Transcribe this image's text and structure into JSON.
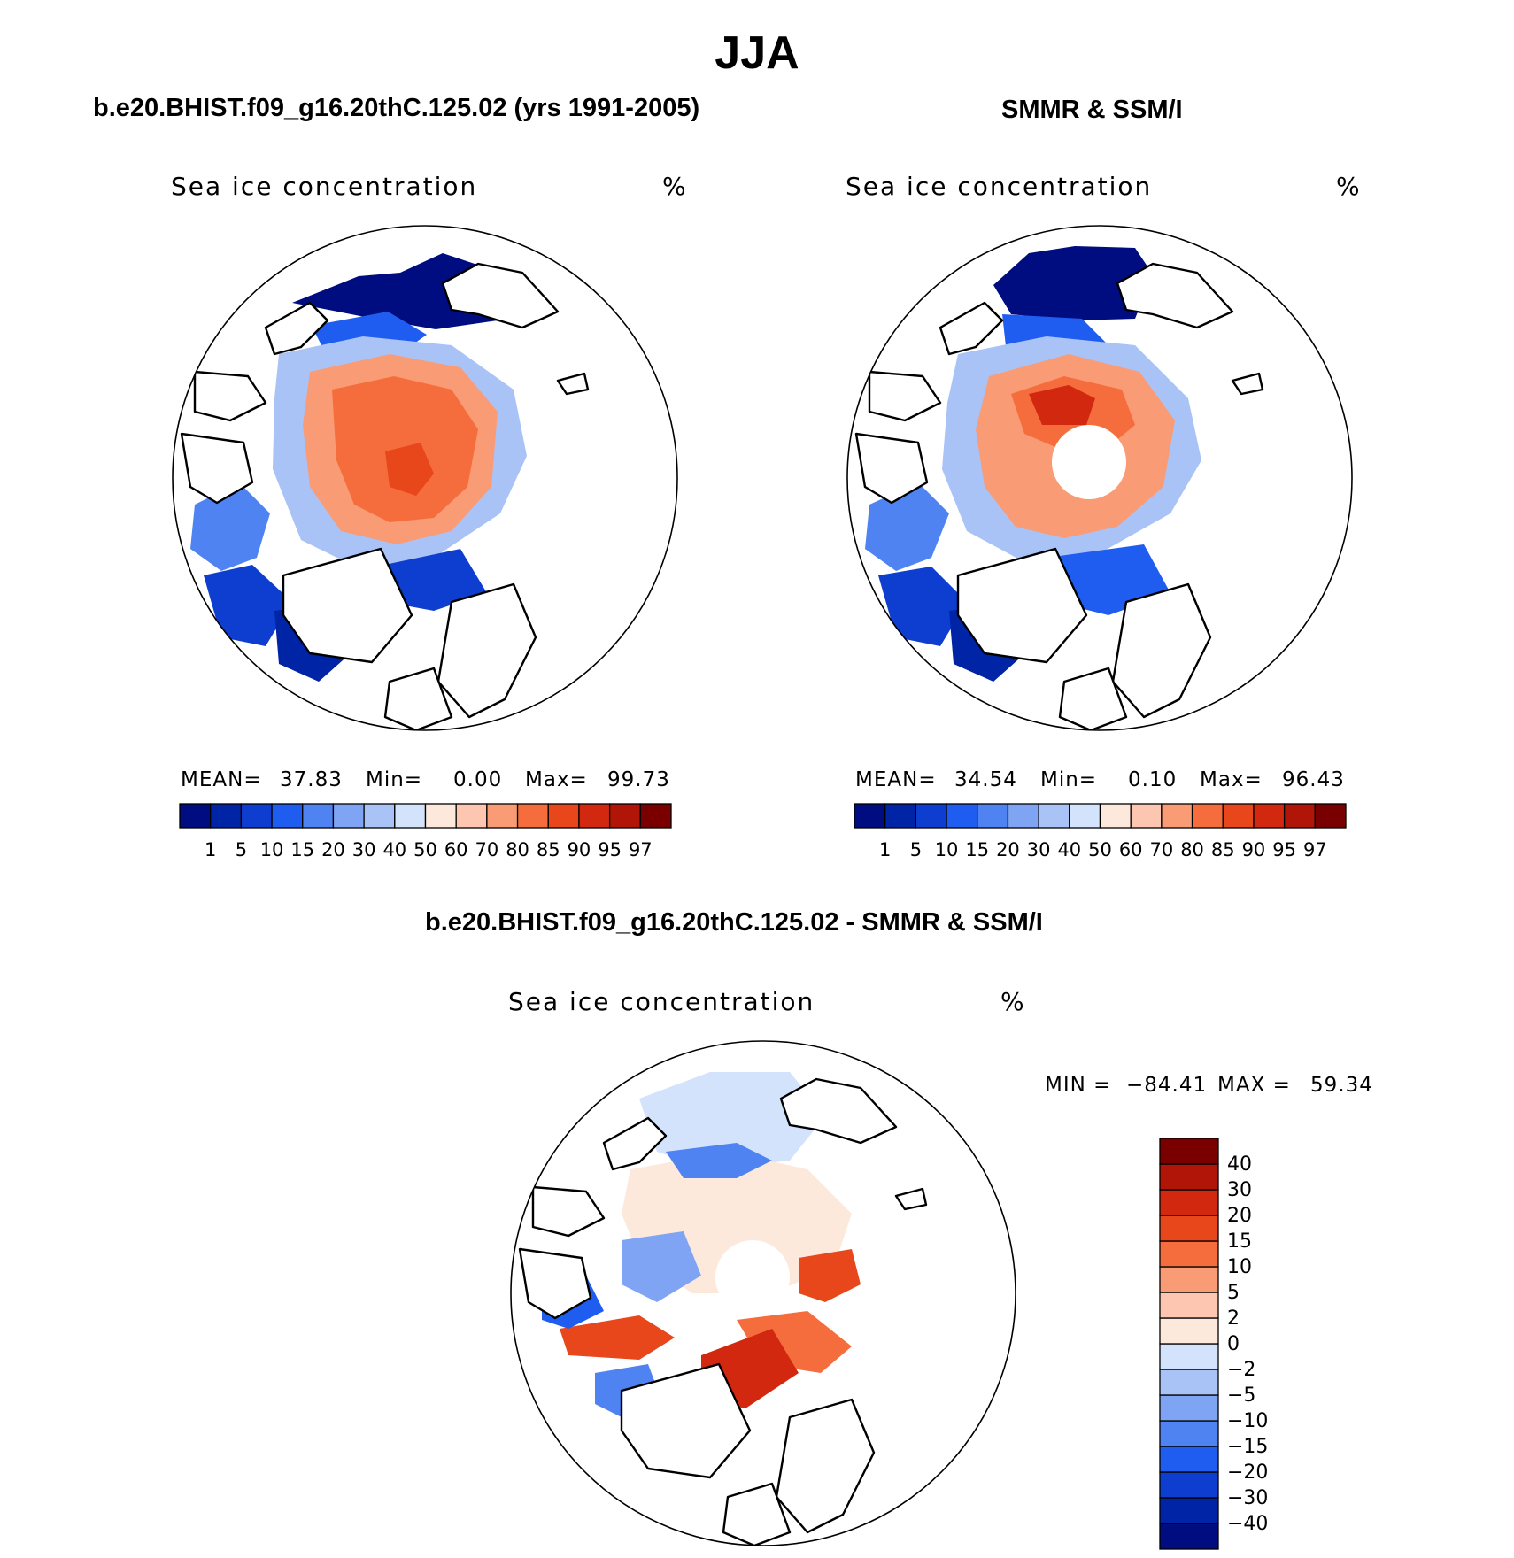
{
  "title": "JJA",
  "panels": [
    {
      "id": "model",
      "heading": "b.e20.BHIST.f09_g16.20thC.125.02 (yrs 1991-2005)",
      "variable": "Sea ice concentration",
      "units": "%",
      "stats": {
        "mean_label": "MEAN=",
        "mean": "37.83",
        "min_label": "Min=",
        "min": "0.00",
        "max_label": "Max=",
        "max": "99.73"
      }
    },
    {
      "id": "obs",
      "heading": "SMMR & SSM/I",
      "variable": "Sea ice concentration",
      "units": "%",
      "stats": {
        "mean_label": "MEAN=",
        "mean": "34.54",
        "min_label": "Min=",
        "min": "0.10",
        "max_label": "Max=",
        "max": "96.43"
      }
    },
    {
      "id": "diff",
      "heading": "b.e20.BHIST.f09_g16.20thC.125.02 - SMMR & SSM/I",
      "variable": "Sea ice concentration",
      "units": "%",
      "stats": {
        "min_label": "MIN =",
        "min": "−84.41",
        "max_label": "MAX =",
        "max": "59.34"
      }
    }
  ],
  "chart_data": [
    {
      "type": "heatmap",
      "title": "b.e20.BHIST.f09_g16.20thC.125.02 (yrs 1991-2005)",
      "projection": "north polar stereographic",
      "variable": "Sea ice concentration (%)",
      "levels": [
        1,
        5,
        10,
        15,
        20,
        30,
        40,
        50,
        60,
        70,
        80,
        85,
        90,
        95,
        97
      ],
      "level_labels": [
        "1",
        "5",
        "10",
        "15",
        "20",
        "30",
        "40",
        "50",
        "60",
        "70",
        "80",
        "85",
        "90",
        "95",
        "97"
      ],
      "colors": [
        "#000d80",
        "#0024a6",
        "#0d3ecf",
        "#1f5df0",
        "#4f83f2",
        "#7fa4f4",
        "#a9c3f7",
        "#d3e3fb",
        "#fde9dc",
        "#fcc6b0",
        "#f99c75",
        "#f56d3d",
        "#e8461b",
        "#d2280f",
        "#b01507",
        "#7a0000"
      ],
      "mean": 37.83,
      "min": 0.0,
      "max": 99.73
    },
    {
      "type": "heatmap",
      "title": "SMMR & SSM/I",
      "projection": "north polar stereographic",
      "variable": "Sea ice concentration (%)",
      "levels": [
        1,
        5,
        10,
        15,
        20,
        30,
        40,
        50,
        60,
        70,
        80,
        85,
        90,
        95,
        97
      ],
      "level_labels": [
        "1",
        "5",
        "10",
        "15",
        "20",
        "30",
        "40",
        "50",
        "60",
        "70",
        "80",
        "85",
        "90",
        "95",
        "97"
      ],
      "colors": [
        "#000d80",
        "#0024a6",
        "#0d3ecf",
        "#1f5df0",
        "#4f83f2",
        "#7fa4f4",
        "#a9c3f7",
        "#d3e3fb",
        "#fde9dc",
        "#fcc6b0",
        "#f99c75",
        "#f56d3d",
        "#e8461b",
        "#d2280f",
        "#b01507",
        "#7a0000"
      ],
      "mean": 34.54,
      "min": 0.1,
      "max": 96.43
    },
    {
      "type": "heatmap",
      "title": "b.e20.BHIST.f09_g16.20thC.125.02 - SMMR & SSM/I",
      "projection": "north polar stereographic",
      "variable": "Sea ice concentration difference (%)",
      "levels": [
        -40,
        -30,
        -20,
        -15,
        -10,
        -5,
        -2,
        0,
        2,
        5,
        10,
        15,
        20,
        30,
        40
      ],
      "level_labels": [
        "−40",
        "−30",
        "−20",
        "−15",
        "−10",
        "−5",
        "−2",
        "0",
        "2",
        "5",
        "10",
        "15",
        "20",
        "30",
        "40"
      ],
      "colors": [
        "#000d80",
        "#0024a6",
        "#0d3ecf",
        "#1f5df0",
        "#4f83f2",
        "#7fa4f4",
        "#a9c3f7",
        "#d3e3fb",
        "#fde9dc",
        "#fcc6b0",
        "#f99c75",
        "#f56d3d",
        "#e8461b",
        "#d2280f",
        "#b01507",
        "#7a0000"
      ],
      "min": -84.41,
      "max": 59.34
    }
  ]
}
